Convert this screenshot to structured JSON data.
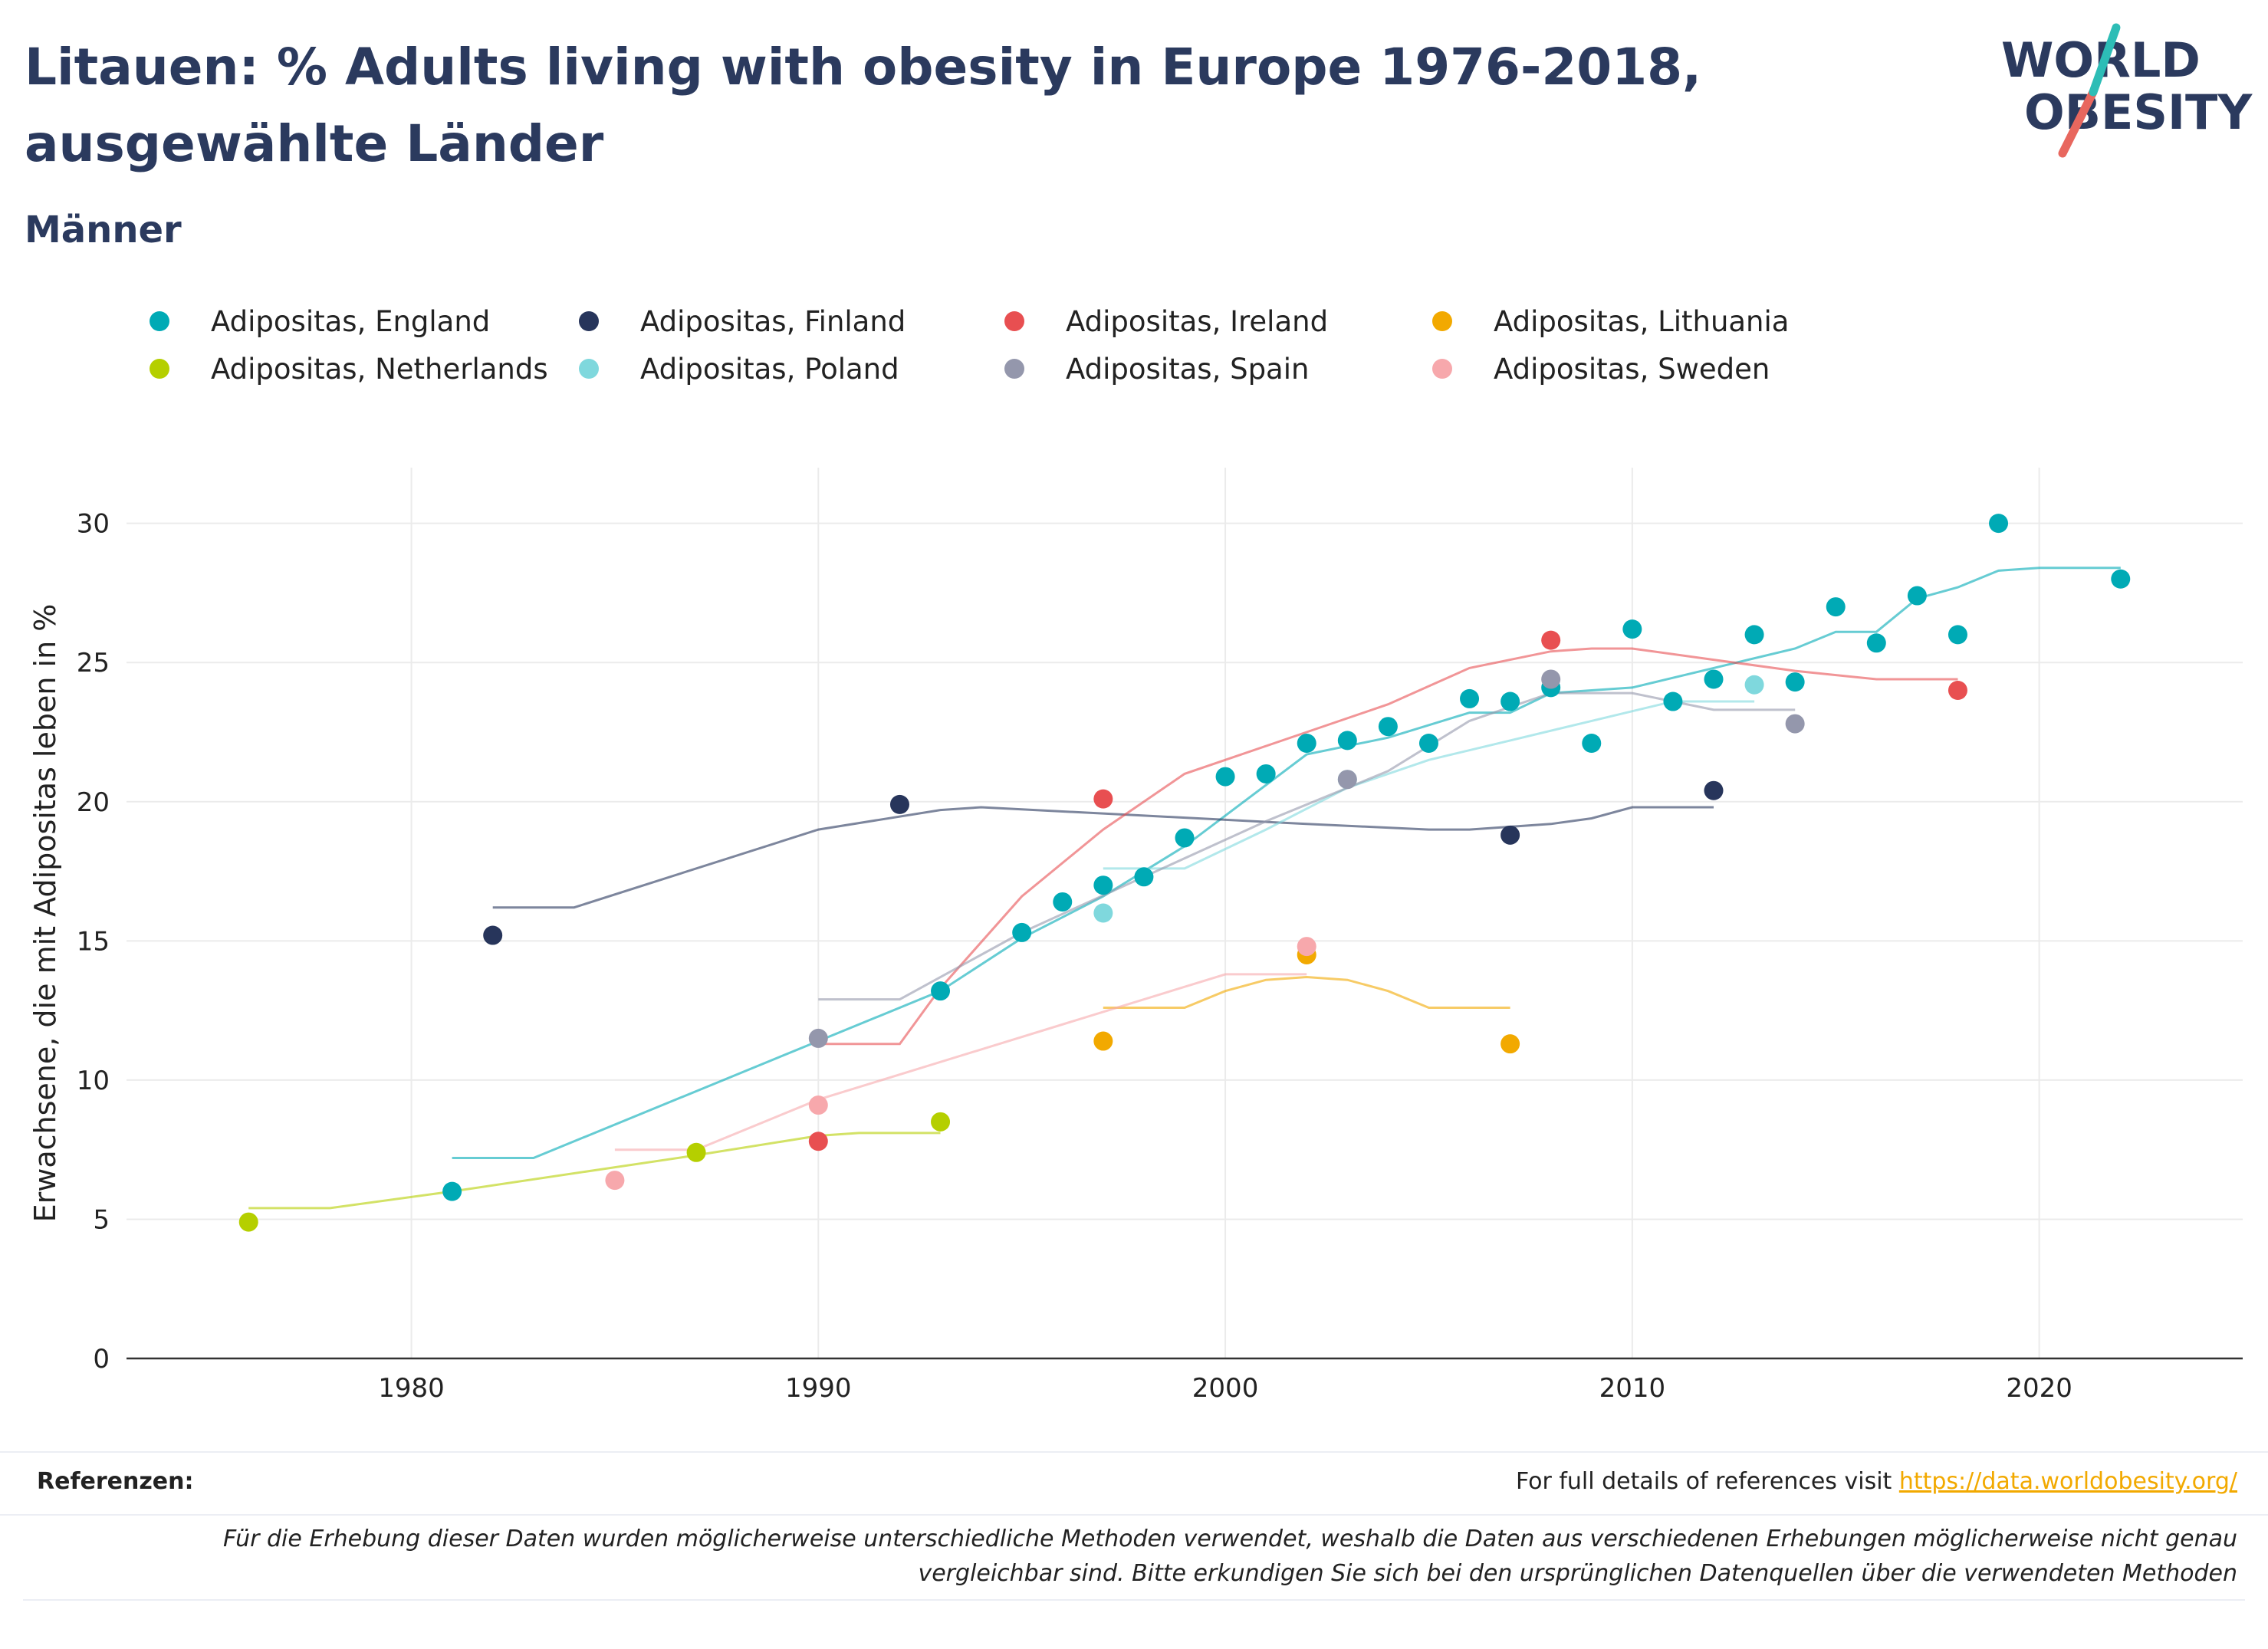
{
  "header": {
    "title": "Litauen: % Adults living with obesity in Europe 1976-2018, ausgewählte Länder",
    "subtitle": "Männer",
    "logo_line1": "WORLD",
    "logo_line2": "OBESITY"
  },
  "footer": {
    "refs_label": "Referenzen:",
    "refs_text": "For full details of references visit",
    "refs_link": "https://data.worldobesity.org/",
    "note": "Für die Erhebung dieser Daten wurden möglicherweise unterschiedliche Methoden verwendet, weshalb die Daten aus verschiedenen Erhebungen möglicherweise nicht genau vergleichbar sind. Bitte erkundigen Sie sich bei den ursprünglichen Datenquellen über die verwendeten Methoden"
  },
  "colors": {
    "title": "#2b3a5e",
    "axis": "#333333",
    "grid": "#ebebeb"
  },
  "chart_data": {
    "type": "scatter",
    "xlabel": "",
    "ylabel": "Erwachsene, die mit Adipositas leben in %",
    "xlim": [
      1973,
      2025
    ],
    "ylim": [
      0,
      32
    ],
    "xticks": [
      1980,
      1990,
      2000,
      2010,
      2020
    ],
    "yticks": [
      0,
      5,
      10,
      15,
      20,
      25,
      30
    ],
    "grid": true,
    "legend_position": "top",
    "series": [
      {
        "name": "Adipositas, England",
        "color": "#00aab5",
        "points": [
          [
            1981,
            6.0
          ],
          [
            1993,
            13.2
          ],
          [
            1995,
            15.3
          ],
          [
            1996,
            16.4
          ],
          [
            1997,
            17.0
          ],
          [
            1998,
            17.3
          ],
          [
            1999,
            18.7
          ],
          [
            2000,
            20.9
          ],
          [
            2001,
            21.0
          ],
          [
            2002,
            22.1
          ],
          [
            2003,
            22.2
          ],
          [
            2004,
            22.7
          ],
          [
            2005,
            22.1
          ],
          [
            2006,
            23.7
          ],
          [
            2007,
            23.6
          ],
          [
            2008,
            24.1
          ],
          [
            2009,
            22.1
          ],
          [
            2010,
            26.2
          ],
          [
            2011,
            23.6
          ],
          [
            2012,
            24.4
          ],
          [
            2013,
            26.0
          ],
          [
            2014,
            24.3
          ],
          [
            2015,
            27.0
          ],
          [
            2016,
            25.7
          ],
          [
            2017,
            27.4
          ],
          [
            2018,
            26.0
          ],
          [
            2019,
            30.0
          ],
          [
            2022,
            28.0
          ]
        ],
        "trend": [
          [
            1981,
            7.2
          ],
          [
            1983,
            7.2
          ],
          [
            1990,
            11.4
          ],
          [
            1993,
            13.2
          ],
          [
            1995,
            15.1
          ],
          [
            1997,
            16.6
          ],
          [
            1999,
            18.4
          ],
          [
            2001,
            20.6
          ],
          [
            2002,
            21.7
          ],
          [
            2004,
            22.3
          ],
          [
            2006,
            23.2
          ],
          [
            2007,
            23.2
          ],
          [
            2008,
            23.9
          ],
          [
            2010,
            24.1
          ],
          [
            2012,
            24.8
          ],
          [
            2014,
            25.5
          ],
          [
            2015,
            26.1
          ],
          [
            2016,
            26.1
          ],
          [
            2017,
            27.3
          ],
          [
            2018,
            27.7
          ],
          [
            2019,
            28.3
          ],
          [
            2020,
            28.4
          ],
          [
            2022,
            28.4
          ]
        ]
      },
      {
        "name": "Adipositas, Finland",
        "color": "#27355b",
        "points": [
          [
            1982,
            15.2
          ],
          [
            1992,
            19.9
          ],
          [
            2007,
            18.8
          ],
          [
            2012,
            20.4
          ]
        ],
        "trend": [
          [
            1982,
            16.2
          ],
          [
            1984,
            16.2
          ],
          [
            1990,
            19.0
          ],
          [
            1993,
            19.7
          ],
          [
            1994,
            19.8
          ],
          [
            1998,
            19.5
          ],
          [
            2002,
            19.2
          ],
          [
            2005,
            19.0
          ],
          [
            2006,
            19.0
          ],
          [
            2008,
            19.2
          ],
          [
            2009,
            19.4
          ],
          [
            2010,
            19.8
          ],
          [
            2012,
            19.8
          ]
        ]
      },
      {
        "name": "Adipositas, Ireland",
        "color": "#e84f51",
        "points": [
          [
            1990,
            7.8
          ],
          [
            1997,
            20.1
          ],
          [
            2008,
            25.8
          ],
          [
            2018,
            24.0
          ]
        ],
        "trend": [
          [
            1990,
            11.3
          ],
          [
            1992,
            11.3
          ],
          [
            1993,
            13.3
          ],
          [
            1995,
            16.6
          ],
          [
            1997,
            19.0
          ],
          [
            1999,
            21.0
          ],
          [
            2002,
            22.5
          ],
          [
            2004,
            23.5
          ],
          [
            2006,
            24.8
          ],
          [
            2008,
            25.4
          ],
          [
            2009,
            25.5
          ],
          [
            2010,
            25.5
          ],
          [
            2012,
            25.1
          ],
          [
            2014,
            24.7
          ],
          [
            2016,
            24.4
          ],
          [
            2018,
            24.4
          ]
        ]
      },
      {
        "name": "Adipositas, Lithuania",
        "color": "#f2a900",
        "points": [
          [
            1997,
            11.4
          ],
          [
            2002,
            14.5
          ],
          [
            2007,
            11.3
          ]
        ],
        "trend": [
          [
            1997,
            12.6
          ],
          [
            1999,
            12.6
          ],
          [
            2000,
            13.2
          ],
          [
            2001,
            13.6
          ],
          [
            2002,
            13.7
          ],
          [
            2003,
            13.6
          ],
          [
            2004,
            13.2
          ],
          [
            2005,
            12.6
          ],
          [
            2007,
            12.6
          ]
        ]
      },
      {
        "name": "Adipositas, Netherlands",
        "color": "#b5cf00",
        "points": [
          [
            1976,
            4.9
          ],
          [
            1987,
            7.4
          ],
          [
            1993,
            8.5
          ]
        ],
        "trend": [
          [
            1976,
            5.4
          ],
          [
            1978,
            5.4
          ],
          [
            1981,
            6.0
          ],
          [
            1987,
            7.3
          ],
          [
            1990,
            8.0
          ],
          [
            1991,
            8.1
          ],
          [
            1993,
            8.1
          ]
        ]
      },
      {
        "name": "Adipositas, Poland",
        "color": "#7fd8dd",
        "points": [
          [
            1997,
            16.0
          ],
          [
            2003,
            20.8
          ],
          [
            2013,
            24.2
          ]
        ],
        "trend": [
          [
            1997,
            17.6
          ],
          [
            1999,
            17.6
          ],
          [
            2001,
            19.0
          ],
          [
            2003,
            20.5
          ],
          [
            2005,
            21.5
          ],
          [
            2007,
            22.2
          ],
          [
            2009,
            22.9
          ],
          [
            2011,
            23.6
          ],
          [
            2013,
            23.6
          ]
        ]
      },
      {
        "name": "Adipositas, Spain",
        "color": "#9497ac",
        "points": [
          [
            1990,
            11.5
          ],
          [
            2003,
            20.8
          ],
          [
            2008,
            24.4
          ],
          [
            2014,
            22.8
          ]
        ],
        "trend": [
          [
            1990,
            12.9
          ],
          [
            1992,
            12.9
          ],
          [
            1995,
            15.3
          ],
          [
            1998,
            17.3
          ],
          [
            2001,
            19.3
          ],
          [
            2004,
            21.1
          ],
          [
            2006,
            22.9
          ],
          [
            2008,
            23.9
          ],
          [
            2010,
            23.9
          ],
          [
            2012,
            23.3
          ],
          [
            2014,
            23.3
          ]
        ]
      },
      {
        "name": "Adipositas, Sweden",
        "color": "#f7a8ac",
        "points": [
          [
            1985,
            6.4
          ],
          [
            1990,
            9.1
          ],
          [
            2002,
            14.8
          ]
        ],
        "trend": [
          [
            1985,
            7.5
          ],
          [
            1987,
            7.5
          ],
          [
            1990,
            9.3
          ],
          [
            2000,
            13.8
          ],
          [
            2002,
            13.8
          ]
        ]
      }
    ]
  }
}
